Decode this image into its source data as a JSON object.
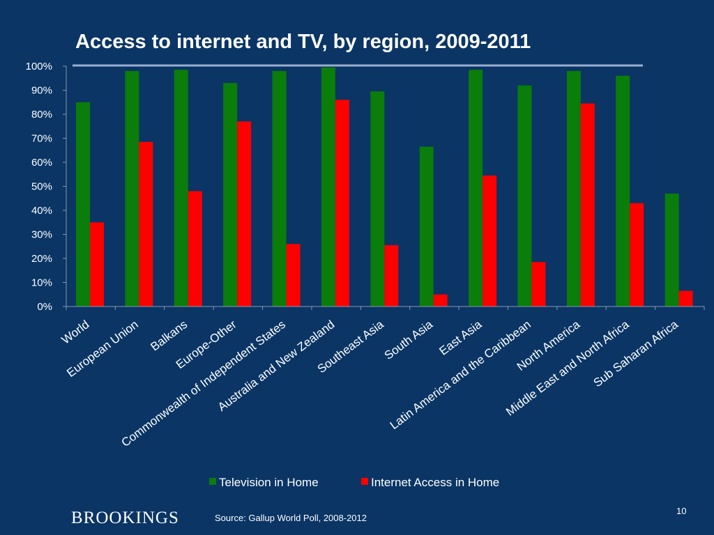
{
  "slide": {
    "title": "Access to internet and TV, by region, 2009-2011",
    "brand": "BROOKINGS",
    "source": "Source: Gallup World Poll, 2008-2012",
    "page_number": "10"
  },
  "colors": {
    "background": "#0a3565",
    "television": "#0a7d0a",
    "internet": "#ff0000",
    "rule": "#9aaed0"
  },
  "chart_data": {
    "type": "bar",
    "title": "Access to internet and TV, by region, 2009-2011",
    "categories": [
      "World",
      "European Union",
      "Balkans",
      "Europe-Other",
      "Commonwealth of Independent States",
      "Australia and New Zealand",
      "Southeast Asia",
      "South Asia",
      "East Asia",
      "Latin America and the Caribbean",
      "North America",
      "Middle East and North Africa",
      "Sub Saharan Africa"
    ],
    "series": [
      {
        "name": "Television in Home",
        "color": "#0a7d0a",
        "values": [
          85,
          98,
          98.5,
          93,
          98,
          99.5,
          89.5,
          66.5,
          98.5,
          92,
          98,
          96,
          47
        ]
      },
      {
        "name": "Internet Access in Home",
        "color": "#ff0000",
        "values": [
          35,
          68.5,
          48,
          77,
          26,
          86,
          25.5,
          5,
          54.5,
          18.5,
          84.5,
          43,
          6.5
        ]
      }
    ],
    "ylim": [
      0,
      100
    ],
    "yticks": [
      "0%",
      "10%",
      "20%",
      "30%",
      "40%",
      "50%",
      "60%",
      "70%",
      "80%",
      "90%",
      "100%"
    ],
    "grid": false,
    "legend": "bottom"
  }
}
